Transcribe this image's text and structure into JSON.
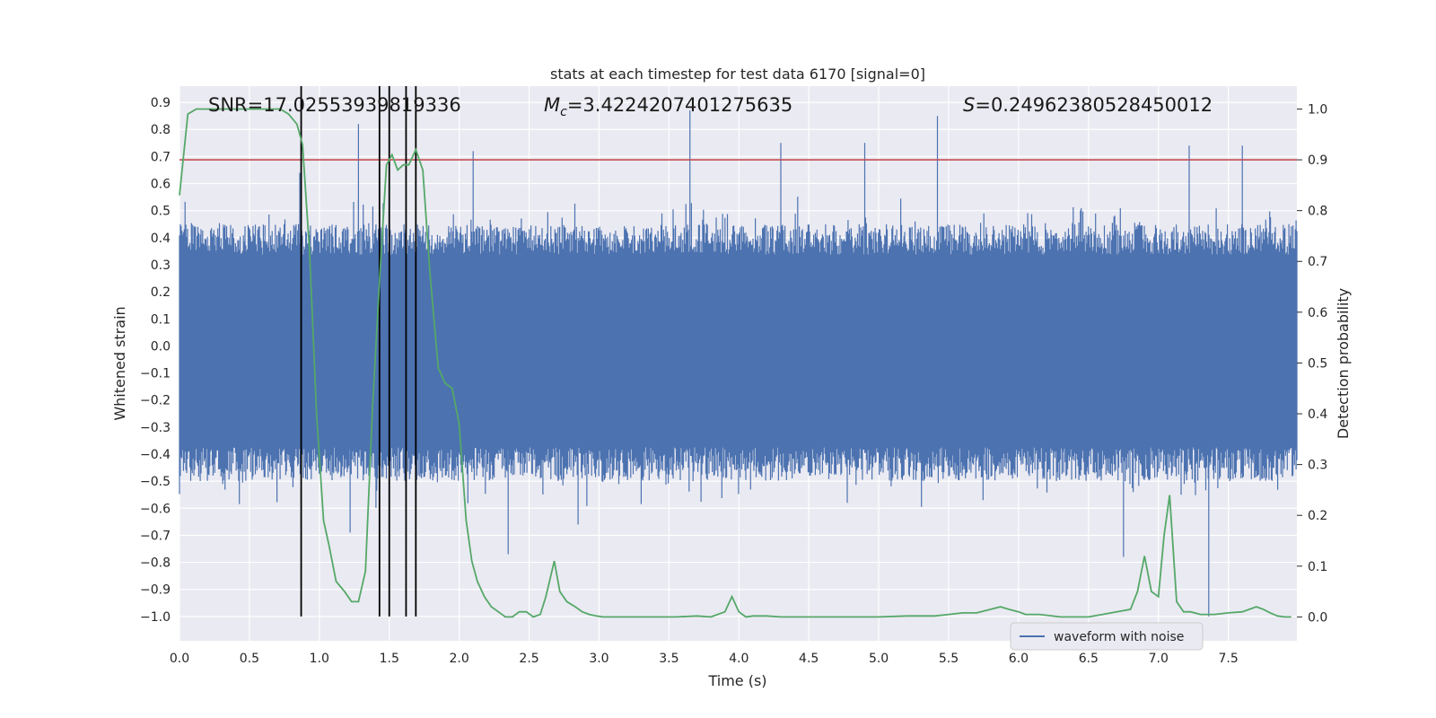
{
  "chart_data": {
    "type": "line",
    "title": "stats at each timestep for test data 6170 [signal=0]",
    "xlabel": "Time (s)",
    "ylabel": "Whitened strain",
    "ylabel_right": "Detection probability",
    "xlim": [
      0.0,
      7.99
    ],
    "ylim": [
      -1.09,
      0.96
    ],
    "ylim_right": [
      -0.047,
      1.045
    ],
    "x_ticks": [
      "0.0",
      "0.5",
      "1.0",
      "1.5",
      "2.0",
      "2.5",
      "3.0",
      "3.5",
      "4.0",
      "4.5",
      "5.0",
      "5.5",
      "6.0",
      "6.5",
      "7.0",
      "7.5"
    ],
    "y_ticks": [
      "0.9",
      "0.8",
      "0.7",
      "0.6",
      "0.5",
      "0.4",
      "0.3",
      "0.2",
      "0.1",
      "0.0",
      "−0.1",
      "−0.2",
      "−0.3",
      "−0.4",
      "−0.5",
      "−0.6",
      "−0.7",
      "−0.8",
      "−0.9",
      "−1.0"
    ],
    "y_ticks_right": [
      "1.0",
      "0.9",
      "0.8",
      "0.7",
      "0.6",
      "0.5",
      "0.4",
      "0.3",
      "0.2",
      "0.1",
      "0.0"
    ],
    "legend": {
      "location": "lower-right",
      "entries": [
        "waveform with noise"
      ]
    },
    "annotations": {
      "snr": "SNR=17.02553939819336",
      "mc": "=3.4224207401275635",
      "mc_symbol": "M",
      "mc_sub": "c",
      "s": "=0.24962380528450012",
      "s_symbol": "S"
    },
    "threshold": 0.9,
    "detection_lines_x": [
      0.87,
      1.43,
      1.5,
      1.62,
      1.69
    ],
    "waveform": {
      "name": "waveform with noise",
      "core_band": [
        -0.36,
        0.33
      ],
      "envelope_typical": [
        -0.5,
        0.45
      ],
      "spikes": [
        {
          "x": 0.86,
          "y": 0.64
        },
        {
          "x": 1.28,
          "y": 0.82
        },
        {
          "x": 1.43,
          "y": 0.72
        },
        {
          "x": 2.1,
          "y": 0.72
        },
        {
          "x": 3.65,
          "y": 0.87
        },
        {
          "x": 4.3,
          "y": 0.75
        },
        {
          "x": 4.9,
          "y": 0.75
        },
        {
          "x": 5.42,
          "y": 0.85
        },
        {
          "x": 7.22,
          "y": 0.74
        },
        {
          "x": 7.6,
          "y": 0.74
        },
        {
          "x": 7.36,
          "y": -1.0
        },
        {
          "x": 2.35,
          "y": -0.77
        },
        {
          "x": 6.75,
          "y": -0.78
        },
        {
          "x": 1.22,
          "y": -0.69
        },
        {
          "x": 2.85,
          "y": -0.66
        }
      ]
    },
    "probability": {
      "name": "detection probability",
      "x": [
        0.0,
        0.06,
        0.12,
        0.2,
        0.3,
        0.4,
        0.5,
        0.6,
        0.66,
        0.72,
        0.78,
        0.84,
        0.88,
        0.93,
        0.98,
        1.03,
        1.07,
        1.12,
        1.18,
        1.23,
        1.28,
        1.33,
        1.38,
        1.43,
        1.48,
        1.52,
        1.56,
        1.6,
        1.64,
        1.69,
        1.74,
        1.79,
        1.85,
        1.9,
        1.95,
        2.0,
        2.05,
        2.09,
        2.13,
        2.18,
        2.23,
        2.28,
        2.33,
        2.38,
        2.43,
        2.48,
        2.53,
        2.58,
        2.62,
        2.68,
        2.72,
        2.77,
        2.83,
        2.88,
        2.93,
        2.98,
        3.03,
        3.08,
        3.15,
        3.25,
        3.4,
        3.55,
        3.7,
        3.8,
        3.9,
        3.95,
        4.0,
        4.05,
        4.1,
        4.2,
        4.3,
        4.45,
        4.6,
        4.8,
        5.0,
        5.2,
        5.4,
        5.5,
        5.6,
        5.7,
        5.8,
        5.87,
        5.93,
        6.0,
        6.05,
        6.15,
        6.3,
        6.5,
        6.6,
        6.7,
        6.8,
        6.85,
        6.9,
        6.95,
        7.0,
        7.04,
        7.08,
        7.13,
        7.18,
        7.23,
        7.3,
        7.4,
        7.5,
        7.6,
        7.7,
        7.75,
        7.8,
        7.85,
        7.9,
        7.95
      ],
      "y": [
        0.83,
        0.99,
        1.0,
        1.0,
        1.0,
        1.0,
        1.0,
        1.0,
        1.0,
        1.0,
        0.99,
        0.97,
        0.93,
        0.72,
        0.4,
        0.19,
        0.14,
        0.07,
        0.05,
        0.03,
        0.03,
        0.09,
        0.41,
        0.66,
        0.89,
        0.91,
        0.88,
        0.89,
        0.89,
        0.92,
        0.88,
        0.68,
        0.49,
        0.46,
        0.45,
        0.38,
        0.19,
        0.11,
        0.07,
        0.04,
        0.02,
        0.01,
        0.0,
        0.0,
        0.01,
        0.01,
        0.0,
        0.005,
        0.04,
        0.11,
        0.05,
        0.03,
        0.02,
        0.01,
        0.005,
        0.002,
        0.0,
        0.0,
        0.0,
        0.0,
        0.0,
        0.0,
        0.002,
        0.0,
        0.01,
        0.04,
        0.01,
        0.0,
        0.002,
        0.002,
        0.0,
        0.0,
        0.0,
        0.0,
        0.0,
        0.002,
        0.002,
        0.005,
        0.008,
        0.008,
        0.015,
        0.02,
        0.015,
        0.01,
        0.005,
        0.005,
        0.0,
        0.0,
        0.005,
        0.01,
        0.015,
        0.05,
        0.12,
        0.05,
        0.04,
        0.16,
        0.24,
        0.03,
        0.01,
        0.01,
        0.005,
        0.005,
        0.008,
        0.01,
        0.02,
        0.015,
        0.008,
        0.002,
        0.0,
        0.0
      ]
    },
    "grid": true
  }
}
